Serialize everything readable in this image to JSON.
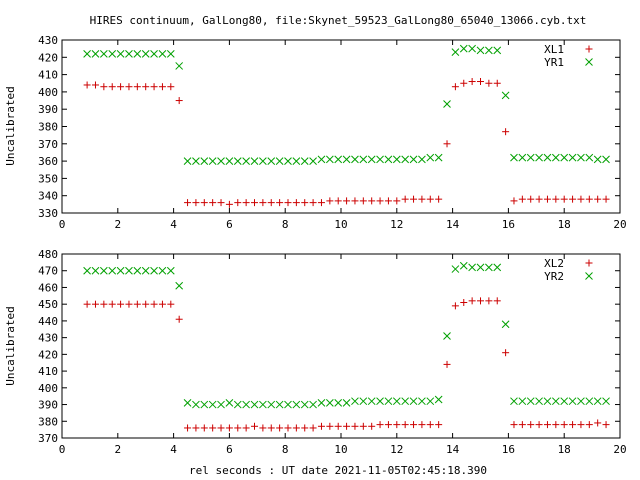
{
  "title": "HIRES continuum, GalLong80, file:Skynet_59523_GalLong80_65040_13066.cyb.txt",
  "xlabel": "rel seconds : UT date 2021-11-05T02:45:18.390",
  "chart_data": [
    {
      "type": "scatter",
      "ylabel": "Uncalibrated",
      "xlim": [
        0,
        20
      ],
      "ylim": [
        330,
        430
      ],
      "xticks": [
        "0",
        "2",
        "4",
        "6",
        "8",
        "10",
        "12",
        "14",
        "16",
        "18",
        "20"
      ],
      "yticks": [
        "330",
        "340",
        "350",
        "360",
        "370",
        "380",
        "390",
        "400",
        "410",
        "420",
        "430"
      ],
      "legend_position": "top-right",
      "grid": false,
      "series": [
        {
          "name": "XL1",
          "marker": "plus",
          "color": "#cc0000",
          "x": [
            0.9,
            1.2,
            1.5,
            1.8,
            2.1,
            2.4,
            2.7,
            3.0,
            3.3,
            3.6,
            3.9,
            4.2,
            4.5,
            4.8,
            5.1,
            5.4,
            5.7,
            6.0,
            6.3,
            6.6,
            6.9,
            7.2,
            7.5,
            7.8,
            8.1,
            8.4,
            8.7,
            9.0,
            9.3,
            9.6,
            9.9,
            10.2,
            10.5,
            10.8,
            11.1,
            11.4,
            11.7,
            12.0,
            12.3,
            12.6,
            12.9,
            13.2,
            13.5,
            13.8,
            14.1,
            14.4,
            14.7,
            15.0,
            15.3,
            15.6,
            15.9,
            16.2,
            16.5,
            16.8,
            17.1,
            17.4,
            17.7,
            18.0,
            18.3,
            18.6,
            18.9,
            19.2,
            19.5
          ],
          "y": [
            404,
            404,
            403,
            403,
            403,
            403,
            403,
            403,
            403,
            403,
            403,
            395,
            336,
            336,
            336,
            336,
            336,
            335,
            336,
            336,
            336,
            336,
            336,
            336,
            336,
            336,
            336,
            336,
            336,
            337,
            337,
            337,
            337,
            337,
            337,
            337,
            337,
            337,
            338,
            338,
            338,
            338,
            338,
            370,
            403,
            405,
            406,
            406,
            405,
            405,
            377,
            337,
            338,
            338,
            338,
            338,
            338,
            338,
            338,
            338,
            338,
            338,
            338
          ]
        },
        {
          "name": "YR1",
          "marker": "cross",
          "color": "#00a000",
          "x": [
            0.9,
            1.2,
            1.5,
            1.8,
            2.1,
            2.4,
            2.7,
            3.0,
            3.3,
            3.6,
            3.9,
            4.2,
            4.5,
            4.8,
            5.1,
            5.4,
            5.7,
            6.0,
            6.3,
            6.6,
            6.9,
            7.2,
            7.5,
            7.8,
            8.1,
            8.4,
            8.7,
            9.0,
            9.3,
            9.6,
            9.9,
            10.2,
            10.5,
            10.8,
            11.1,
            11.4,
            11.7,
            12.0,
            12.3,
            12.6,
            12.9,
            13.2,
            13.5,
            13.8,
            14.1,
            14.4,
            14.7,
            15.0,
            15.3,
            15.6,
            15.9,
            16.2,
            16.5,
            16.8,
            17.1,
            17.4,
            17.7,
            18.0,
            18.3,
            18.6,
            18.9,
            19.2,
            19.5
          ],
          "y": [
            422,
            422,
            422,
            422,
            422,
            422,
            422,
            422,
            422,
            422,
            422,
            415,
            360,
            360,
            360,
            360,
            360,
            360,
            360,
            360,
            360,
            360,
            360,
            360,
            360,
            360,
            360,
            360,
            361,
            361,
            361,
            361,
            361,
            361,
            361,
            361,
            361,
            361,
            361,
            361,
            361,
            362,
            362,
            393,
            423,
            425,
            425,
            424,
            424,
            424,
            398,
            362,
            362,
            362,
            362,
            362,
            362,
            362,
            362,
            362,
            362,
            361,
            361
          ]
        }
      ]
    },
    {
      "type": "scatter",
      "ylabel": "Uncalibrated",
      "xlim": [
        0,
        20
      ],
      "ylim": [
        370,
        480
      ],
      "xticks": [
        "0",
        "2",
        "4",
        "6",
        "8",
        "10",
        "12",
        "14",
        "16",
        "18",
        "20"
      ],
      "yticks": [
        "370",
        "380",
        "390",
        "400",
        "410",
        "420",
        "430",
        "440",
        "450",
        "460",
        "470",
        "480"
      ],
      "legend_position": "top-right",
      "grid": false,
      "series": [
        {
          "name": "XL2",
          "marker": "plus",
          "color": "#cc0000",
          "x": [
            0.9,
            1.2,
            1.5,
            1.8,
            2.1,
            2.4,
            2.7,
            3.0,
            3.3,
            3.6,
            3.9,
            4.2,
            4.5,
            4.8,
            5.1,
            5.4,
            5.7,
            6.0,
            6.3,
            6.6,
            6.9,
            7.2,
            7.5,
            7.8,
            8.1,
            8.4,
            8.7,
            9.0,
            9.3,
            9.6,
            9.9,
            10.2,
            10.5,
            10.8,
            11.1,
            11.4,
            11.7,
            12.0,
            12.3,
            12.6,
            12.9,
            13.2,
            13.5,
            13.8,
            14.1,
            14.4,
            14.7,
            15.0,
            15.3,
            15.6,
            15.9,
            16.2,
            16.5,
            16.8,
            17.1,
            17.4,
            17.7,
            18.0,
            18.3,
            18.6,
            18.9,
            19.2,
            19.5
          ],
          "y": [
            450,
            450,
            450,
            450,
            450,
            450,
            450,
            450,
            450,
            450,
            450,
            441,
            376,
            376,
            376,
            376,
            376,
            376,
            376,
            376,
            377,
            376,
            376,
            376,
            376,
            376,
            376,
            376,
            377,
            377,
            377,
            377,
            377,
            377,
            377,
            378,
            378,
            378,
            378,
            378,
            378,
            378,
            378,
            414,
            449,
            451,
            452,
            452,
            452,
            452,
            421,
            378,
            378,
            378,
            378,
            378,
            378,
            378,
            378,
            378,
            378,
            379,
            378
          ]
        },
        {
          "name": "YR2",
          "marker": "cross",
          "color": "#00a000",
          "x": [
            0.9,
            1.2,
            1.5,
            1.8,
            2.1,
            2.4,
            2.7,
            3.0,
            3.3,
            3.6,
            3.9,
            4.2,
            4.5,
            4.8,
            5.1,
            5.4,
            5.7,
            6.0,
            6.3,
            6.6,
            6.9,
            7.2,
            7.5,
            7.8,
            8.1,
            8.4,
            8.7,
            9.0,
            9.3,
            9.6,
            9.9,
            10.2,
            10.5,
            10.8,
            11.1,
            11.4,
            11.7,
            12.0,
            12.3,
            12.6,
            12.9,
            13.2,
            13.5,
            13.8,
            14.1,
            14.4,
            14.7,
            15.0,
            15.3,
            15.6,
            15.9,
            16.2,
            16.5,
            16.8,
            17.1,
            17.4,
            17.7,
            18.0,
            18.3,
            18.6,
            18.9,
            19.2,
            19.5
          ],
          "y": [
            470,
            470,
            470,
            470,
            470,
            470,
            470,
            470,
            470,
            470,
            470,
            461,
            391,
            390,
            390,
            390,
            390,
            391,
            390,
            390,
            390,
            390,
            390,
            390,
            390,
            390,
            390,
            390,
            391,
            391,
            391,
            391,
            392,
            392,
            392,
            392,
            392,
            392,
            392,
            392,
            392,
            392,
            393,
            431,
            471,
            473,
            472,
            472,
            472,
            472,
            438,
            392,
            392,
            392,
            392,
            392,
            392,
            392,
            392,
            392,
            392,
            392,
            392
          ]
        }
      ]
    }
  ]
}
